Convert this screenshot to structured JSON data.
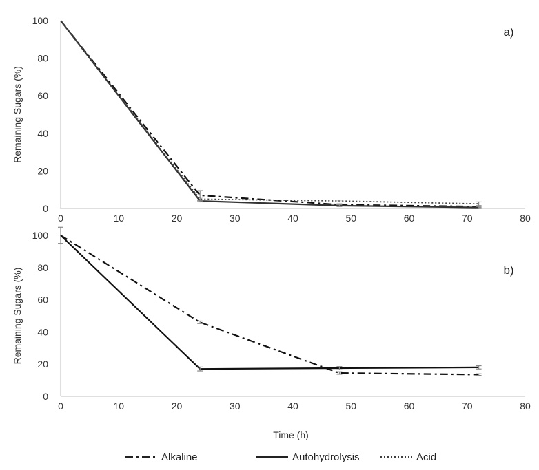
{
  "chart_data": [
    {
      "type": "line",
      "panel_label": "a)",
      "ylabel": "Remaining Sugars (%)",
      "xlabel": "",
      "xlim": [
        0,
        80
      ],
      "ylim": [
        0,
        100
      ],
      "xticks": [
        0,
        10,
        20,
        30,
        40,
        50,
        60,
        70,
        80
      ],
      "yticks": [
        0,
        20,
        40,
        60,
        80,
        100
      ],
      "grid": false,
      "series": [
        {
          "name": "Alkaline",
          "style": "dash-dot",
          "color": "#111111",
          "x": [
            0,
            24,
            48,
            72
          ],
          "y": [
            100,
            7,
            2,
            1
          ],
          "err": [
            0,
            2.5,
            0.5,
            0.5
          ]
        },
        {
          "name": "Autohydrolysis",
          "style": "solid",
          "color": "#333333",
          "x": [
            0,
            24,
            48,
            72
          ],
          "y": [
            100,
            4,
            1.5,
            0.5
          ],
          "err": [
            0,
            0.5,
            0.5,
            0.5
          ]
        },
        {
          "name": "Acid",
          "style": "dotted",
          "color": "#444444",
          "x": [
            0,
            24,
            48,
            72
          ],
          "y": [
            100,
            5,
            4,
            2.5
          ],
          "err": [
            0,
            1,
            0.5,
            1
          ]
        }
      ]
    },
    {
      "type": "line",
      "panel_label": "b)",
      "ylabel": "Remaining Sugars (%)",
      "xlabel": "Time (h)",
      "xlim": [
        0,
        80
      ],
      "ylim": [
        0,
        100
      ],
      "xticks": [
        0,
        10,
        20,
        30,
        40,
        50,
        60,
        70,
        80
      ],
      "yticks": [
        0,
        20,
        40,
        60,
        80,
        100
      ],
      "grid": false,
      "series": [
        {
          "name": "Alkaline",
          "style": "dash-dot",
          "color": "#111111",
          "x": [
            0,
            24,
            48,
            72
          ],
          "y": [
            100,
            46,
            14.5,
            13.5
          ],
          "err": [
            5,
            0.8,
            0.8,
            0.5
          ]
        },
        {
          "name": "Autohydrolysis",
          "style": "solid",
          "color": "#111111",
          "x": [
            0,
            24,
            48,
            72
          ],
          "y": [
            100,
            17,
            17.5,
            18
          ],
          "err": [
            0,
            1.2,
            1,
            1
          ]
        }
      ]
    }
  ],
  "legend": {
    "placement": "bottom",
    "entries": [
      {
        "label": "Alkaline",
        "style": "dash-dot"
      },
      {
        "label": "Autohydrolysis",
        "style": "solid"
      },
      {
        "label": "Acid",
        "style": "dotted"
      }
    ]
  }
}
